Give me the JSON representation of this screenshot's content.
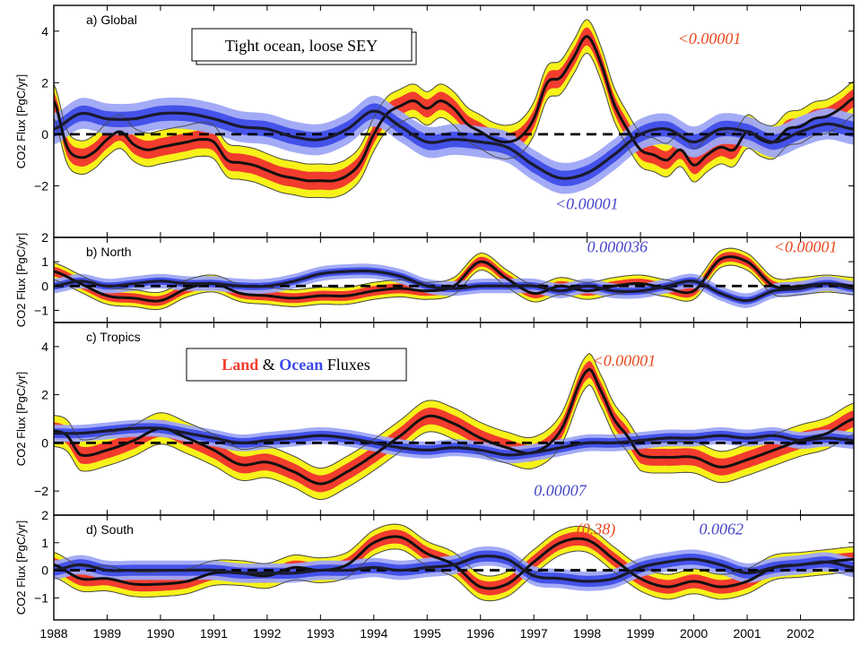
{
  "chart_data": {
    "type": "line",
    "x_range": [
      1988,
      2003
    ],
    "x_ticks": [
      "1988",
      "1989",
      "1990",
      "1991",
      "1992",
      "1993",
      "1994",
      "1995",
      "1996",
      "1997",
      "1998",
      "1999",
      "2000",
      "2001",
      "2002"
    ],
    "ylabel": "CO2 Flux [PgC/yr]",
    "colors": {
      "land_median": "#111111",
      "land_inner": "#f23c2e",
      "land_outer": "#f7f21a",
      "ocean_inner": "#3a48e8",
      "ocean_outer": "#9ea6f5",
      "zero_line": "#000000"
    },
    "boxes": [
      {
        "text": "Tight ocean, loose SEY"
      },
      {
        "land_word": "Land",
        "amp": "&",
        "ocean_word": "Ocean",
        "tail": "Fluxes"
      }
    ],
    "panels": [
      {
        "label": "a) Global",
        "ylim": [
          -4,
          5
        ],
        "yticks": [
          "-2",
          "0",
          "2",
          "4"
        ],
        "land": {
          "x": [
            1988,
            1988.25,
            1988.5,
            1988.75,
            1989,
            1989.25,
            1989.5,
            1989.75,
            1990,
            1990.25,
            1990.5,
            1990.75,
            1991,
            1991.25,
            1991.5,
            1991.75,
            1992,
            1992.25,
            1992.5,
            1992.75,
            1993,
            1993.25,
            1993.5,
            1993.75,
            1994,
            1994.25,
            1994.5,
            1994.75,
            1995,
            1995.25,
            1995.5,
            1995.75,
            1996,
            1996.25,
            1996.5,
            1996.75,
            1997,
            1997.25,
            1997.5,
            1997.75,
            1998,
            1998.25,
            1998.5,
            1998.75,
            1999,
            1999.25,
            1999.5,
            1999.75,
            2000,
            2000.25,
            2000.5,
            2000.75,
            2001,
            2001.25,
            2001.5,
            2001.75,
            2002,
            2002.25,
            2002.5,
            2002.75,
            2003
          ],
          "y": [
            1.3,
            -0.5,
            -0.9,
            -0.7,
            -0.2,
            0.1,
            -0.4,
            -0.6,
            -0.5,
            -0.4,
            -0.3,
            -0.2,
            -0.3,
            -1.0,
            -1.1,
            -1.2,
            -1.4,
            -1.6,
            -1.7,
            -1.8,
            -1.8,
            -1.8,
            -1.6,
            -1.1,
            0.0,
            0.8,
            1.1,
            1.3,
            1.0,
            1.3,
            1.0,
            0.4,
            0.1,
            -0.2,
            -0.3,
            -0.1,
            0.6,
            2.0,
            2.2,
            3.0,
            3.8,
            2.8,
            1.2,
            0.2,
            -0.6,
            -0.8,
            -1.0,
            -0.6,
            -1.2,
            -0.8,
            -0.5,
            -0.6,
            0.1,
            -0.2,
            -0.3,
            0.2,
            0.3,
            0.6,
            0.7,
            1.0,
            1.4
          ],
          "inner": 0.35,
          "outer": 0.65
        },
        "ocean": {
          "x": [
            1988,
            1988.5,
            1989,
            1989.5,
            1990,
            1990.5,
            1991,
            1991.5,
            1992,
            1992.5,
            1993,
            1993.5,
            1994,
            1994.5,
            1995,
            1995.5,
            1996,
            1996.5,
            1997,
            1997.5,
            1998,
            1998.5,
            1999,
            1999.5,
            2000,
            2000.5,
            2001,
            2001.5,
            2002,
            2002.5,
            2003
          ],
          "y": [
            0.2,
            0.8,
            0.6,
            0.6,
            0.8,
            0.8,
            0.6,
            0.3,
            0.2,
            -0.1,
            -0.2,
            0.2,
            0.9,
            0.3,
            -0.3,
            -0.2,
            -0.3,
            -0.5,
            -1.2,
            -1.7,
            -1.5,
            -0.8,
            0.0,
            0.2,
            -0.3,
            0.2,
            0.1,
            -0.3,
            0.1,
            0.4,
            0.2
          ],
          "inner": 0.3,
          "outer": 0.6
        },
        "annotations": [
          {
            "text": "<0.00001",
            "color": "#e8481e",
            "x": 1999.7,
            "y": 3.5
          },
          {
            "text": "<0.00001",
            "color": "#4545c8",
            "x": 1997.4,
            "y": -2.9
          }
        ],
        "box": 0
      },
      {
        "label": "b) North",
        "ylim": [
          -1.5,
          2.0
        ],
        "yticks": [
          "-1",
          "0",
          "1",
          "2"
        ],
        "land": {
          "x": [
            1988,
            1988.5,
            1989,
            1989.5,
            1990,
            1990.5,
            1991,
            1991.5,
            1992,
            1992.5,
            1993,
            1993.5,
            1994,
            1994.5,
            1995,
            1995.5,
            1996,
            1996.5,
            1997,
            1997.5,
            1998,
            1998.5,
            1999,
            1999.5,
            2000,
            2000.5,
            2001,
            2001.5,
            2002,
            2002.5,
            2003
          ],
          "y": [
            0.6,
            0.1,
            -0.4,
            -0.5,
            -0.6,
            -0.1,
            0.1,
            -0.3,
            -0.4,
            -0.5,
            -0.4,
            -0.4,
            -0.2,
            -0.1,
            -0.2,
            0.0,
            1.0,
            0.3,
            -0.3,
            0.0,
            -0.2,
            0.0,
            0.1,
            -0.1,
            -0.2,
            1.1,
            1.0,
            0.0,
            0.0,
            0.1,
            0.0
          ],
          "inner": 0.2,
          "outer": 0.35
        },
        "ocean": {
          "x": [
            1988,
            1988.5,
            1989,
            1989.5,
            1990,
            1990.5,
            1991,
            1991.5,
            1992,
            1992.5,
            1993,
            1993.5,
            1994,
            1994.5,
            1995,
            1995.5,
            1996,
            1996.5,
            1997,
            1997.5,
            1998,
            1998.5,
            1999,
            1999.5,
            2000,
            2000.5,
            2001,
            2001.5,
            2002,
            2002.5,
            2003
          ],
          "y": [
            0.0,
            0.2,
            0.0,
            0.1,
            0.2,
            0.1,
            0.1,
            0.0,
            0.0,
            0.2,
            0.5,
            0.6,
            0.6,
            0.4,
            0.0,
            -0.1,
            0.0,
            0.0,
            0.0,
            -0.2,
            0.0,
            -0.2,
            -0.2,
            0.0,
            0.2,
            -0.3,
            -0.6,
            -0.2,
            -0.1,
            0.1,
            -0.1
          ],
          "inner": 0.15,
          "outer": 0.3
        },
        "annotations": [
          {
            "text": "0.000036",
            "color": "#4545c8",
            "x": 1998.0,
            "y": 1.4
          },
          {
            "text": "<0.00001",
            "color": "#e8481e",
            "x": 2001.5,
            "y": 1.4
          }
        ]
      },
      {
        "label": "c) Tropics",
        "ylim": [
          -3,
          5
        ],
        "yticks": [
          "-2",
          "0",
          "2",
          "4"
        ],
        "land": {
          "x": [
            1988,
            1988.25,
            1988.5,
            1989,
            1989.5,
            1990,
            1990.5,
            1991,
            1991.5,
            1992,
            1992.5,
            1993,
            1993.5,
            1994,
            1994.5,
            1995,
            1995.5,
            1996,
            1996.5,
            1997,
            1997.5,
            1998,
            1998.25,
            1998.5,
            1998.75,
            1999,
            1999.5,
            2000,
            2000.5,
            2001,
            2001.5,
            2002,
            2002.5,
            2003
          ],
          "y": [
            0.5,
            0.3,
            -0.5,
            -0.3,
            0.1,
            0.6,
            0.2,
            -0.3,
            -0.9,
            -0.8,
            -1.2,
            -1.7,
            -1.2,
            -0.5,
            0.3,
            1.1,
            0.8,
            0.2,
            -0.2,
            -0.4,
            0.5,
            3.0,
            2.2,
            1.0,
            0.3,
            -0.5,
            -0.6,
            -0.6,
            -1.0,
            -0.7,
            -0.3,
            0.1,
            0.4,
            1.0
          ],
          "inner": 0.35,
          "outer": 0.65
        },
        "ocean": {
          "x": [
            1988,
            1988.5,
            1989,
            1989.5,
            1990,
            1990.5,
            1991,
            1991.5,
            1992,
            1992.5,
            1993,
            1993.5,
            1994,
            1994.5,
            1995,
            1995.5,
            1996,
            1996.5,
            1997,
            1997.5,
            1998,
            1998.5,
            1999,
            1999.5,
            2000,
            2000.5,
            2001,
            2001.5,
            2002,
            2002.5,
            2003
          ],
          "y": [
            0.4,
            0.4,
            0.5,
            0.6,
            0.6,
            0.4,
            0.2,
            0.0,
            0.1,
            0.2,
            0.3,
            0.2,
            0.0,
            -0.2,
            -0.3,
            -0.2,
            -0.3,
            -0.5,
            -0.4,
            -0.2,
            0.0,
            0.0,
            0.1,
            0.2,
            0.2,
            0.3,
            0.2,
            0.3,
            0.1,
            0.2,
            0.1
          ],
          "inner": 0.2,
          "outer": 0.35
        },
        "annotations": [
          {
            "text": "<0.00001",
            "color": "#e8481e",
            "x": 1998.1,
            "y": 3.2
          },
          {
            "text": "0.00007",
            "color": "#4545c8",
            "x": 1997.0,
            "y": -2.2
          }
        ],
        "box": 1
      },
      {
        "label": "d) South",
        "ylim": [
          -1.8,
          2.0
        ],
        "yticks": [
          "-1",
          "0",
          "1",
          "2"
        ],
        "land": {
          "x": [
            1988,
            1988.5,
            1989,
            1989.5,
            1990,
            1990.5,
            1991,
            1991.5,
            1992,
            1992.5,
            1993,
            1993.5,
            1994,
            1994.5,
            1995,
            1995.5,
            1996,
            1996.5,
            1997,
            1997.5,
            1998,
            1998.5,
            1999,
            1999.5,
            2000,
            2000.5,
            2001,
            2001.5,
            2002,
            2002.5,
            2003
          ],
          "y": [
            0.2,
            -0.3,
            -0.3,
            -0.5,
            -0.5,
            -0.4,
            -0.1,
            -0.1,
            -0.2,
            0.1,
            0.0,
            0.2,
            1.0,
            1.2,
            0.6,
            0.2,
            -0.6,
            -0.5,
            0.3,
            1.0,
            1.1,
            0.4,
            -0.3,
            -0.6,
            -0.4,
            -0.6,
            -0.4,
            0.1,
            0.2,
            0.3,
            0.4
          ],
          "inner": 0.25,
          "outer": 0.45
        },
        "ocean": {
          "x": [
            1988,
            1988.5,
            1989,
            1989.5,
            1990,
            1990.5,
            1991,
            1991.5,
            1992,
            1992.5,
            1993,
            1993.5,
            1994,
            1994.5,
            1995,
            1995.5,
            1996,
            1996.5,
            1997,
            1997.5,
            1998,
            1998.5,
            1999,
            1999.5,
            2000,
            2000.5,
            2001,
            2001.5,
            2002,
            2002.5,
            2003
          ],
          "y": [
            0.0,
            0.2,
            0.0,
            0.0,
            0.0,
            0.0,
            0.0,
            -0.1,
            -0.1,
            -0.1,
            0.0,
            0.0,
            0.1,
            0.0,
            0.1,
            0.2,
            0.5,
            0.4,
            -0.2,
            -0.3,
            -0.4,
            -0.3,
            0.1,
            0.3,
            0.4,
            0.2,
            -0.1,
            0.1,
            0.2,
            0.3,
            0.1
          ],
          "inner": 0.2,
          "outer": 0.35
        },
        "annotations": [
          {
            "text": "(0.38)",
            "color": "#e8481e",
            "x": 1997.8,
            "y": 1.3
          },
          {
            "text": "0.0062",
            "color": "#4545c8",
            "x": 2000.1,
            "y": 1.3
          }
        ]
      }
    ]
  }
}
